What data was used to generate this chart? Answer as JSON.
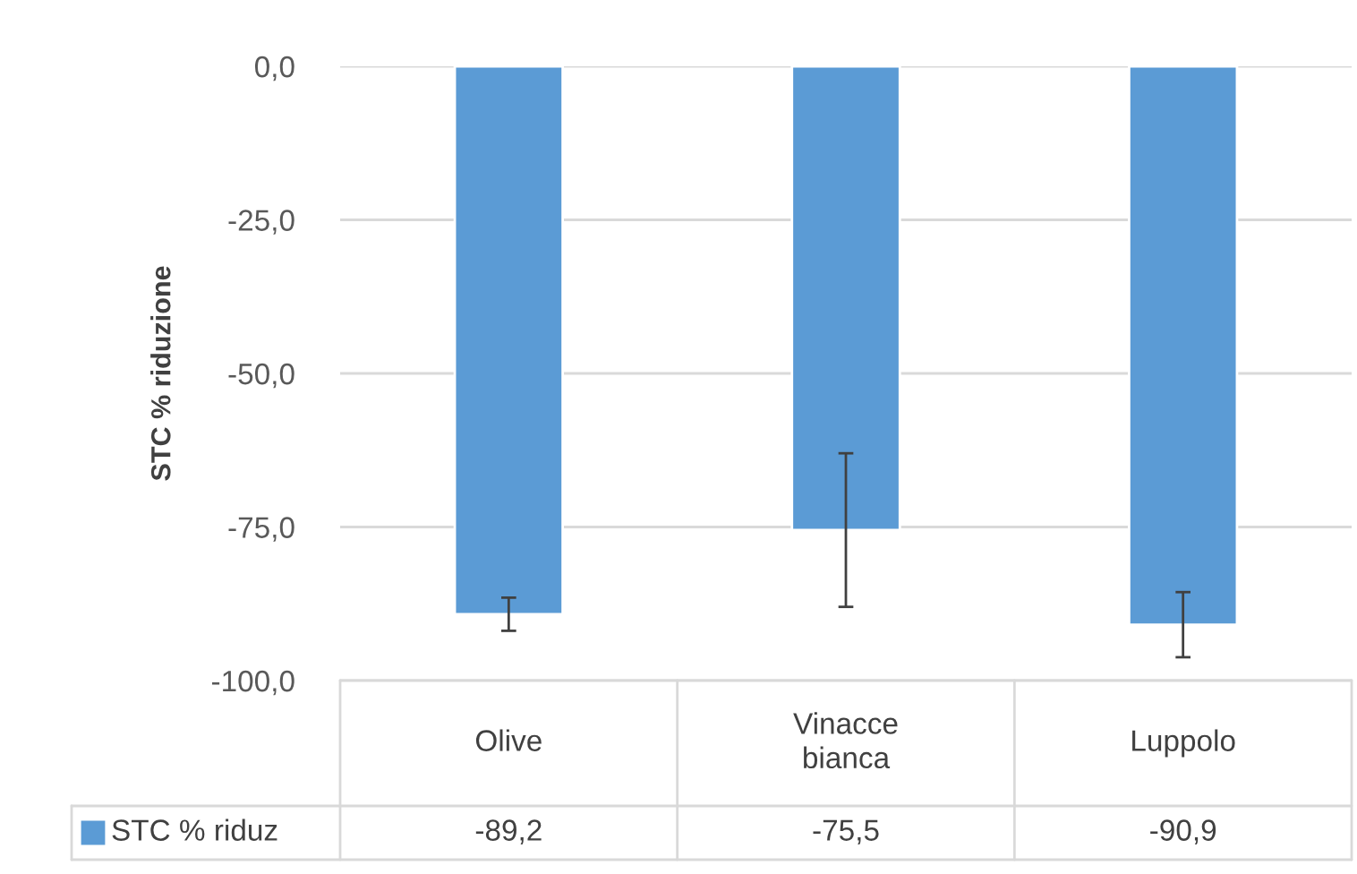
{
  "chart_data": {
    "type": "bar",
    "ylabel": "STC % riduzione",
    "categories": [
      "Olive",
      "Vinacce\nbianca",
      "Luppolo"
    ],
    "series": [
      {
        "name": "STC % riduz",
        "color": "#5b9bd5",
        "values": [
          -89.2,
          -75.5,
          -90.9
        ],
        "errors": [
          2.7,
          12.5,
          5.3
        ],
        "value_labels": [
          "-89,2",
          "-75,5",
          "-90,9"
        ]
      }
    ],
    "ylim": [
      -100,
      0
    ],
    "yticks": [
      {
        "value": 0,
        "label": "0,0"
      },
      {
        "value": -25,
        "label": "-25,0"
      },
      {
        "value": -50,
        "label": "-50,0"
      },
      {
        "value": -75,
        "label": "-75,0"
      },
      {
        "value": -100,
        "label": "-100,0"
      }
    ],
    "grid": "y",
    "legend": "bottom"
  }
}
